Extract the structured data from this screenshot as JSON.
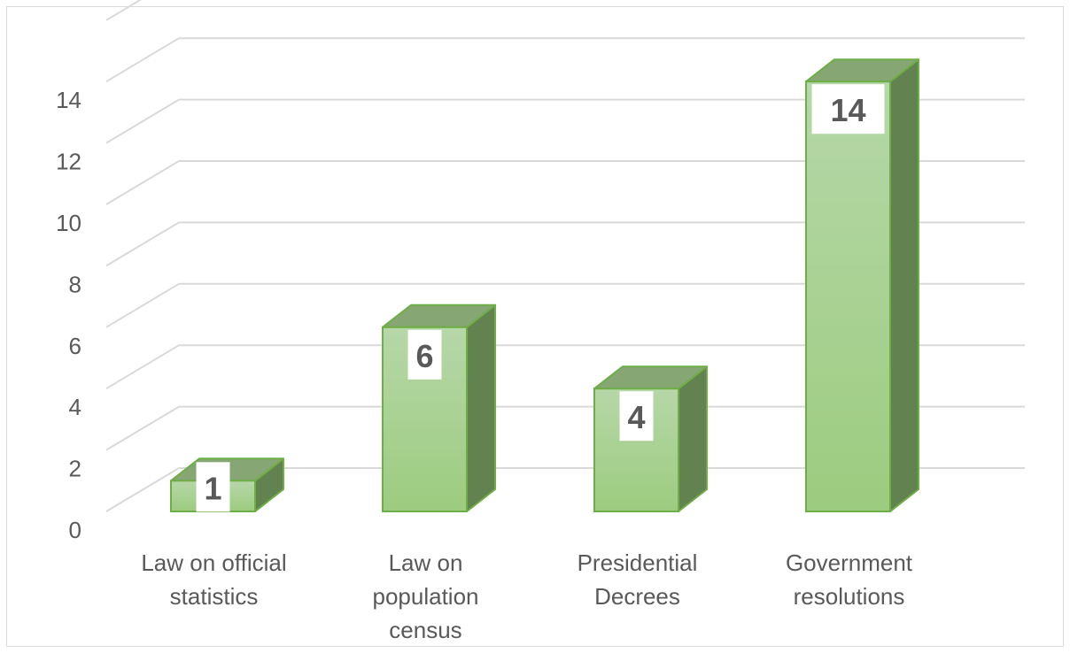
{
  "chart_data": {
    "type": "bar",
    "style": "3d-column",
    "title": "",
    "xlabel": "",
    "ylabel": "",
    "categories": [
      [
        "Law on official",
        "statistics"
      ],
      [
        "Law on",
        "population",
        "census"
      ],
      [
        "Presidential",
        "Decrees"
      ],
      [
        "Government",
        "resolutions"
      ]
    ],
    "values": [
      1,
      6,
      4,
      14
    ],
    "data_labels": [
      "1",
      "6",
      "4",
      "14"
    ],
    "ylim": [
      0,
      14
    ],
    "yticks": [
      "0",
      "2",
      "4",
      "6",
      "8",
      "10",
      "12",
      "14"
    ],
    "grid": true,
    "legend": "none",
    "colors": {
      "bar_front_top": "#b6d7a8",
      "bar_front_bottom": "#9ccc7f",
      "bar_side": "#62824f",
      "bar_top": "#86a673",
      "bar_border": "#6fad46",
      "gridline": "#d9d9d9",
      "text": "#595959"
    }
  }
}
